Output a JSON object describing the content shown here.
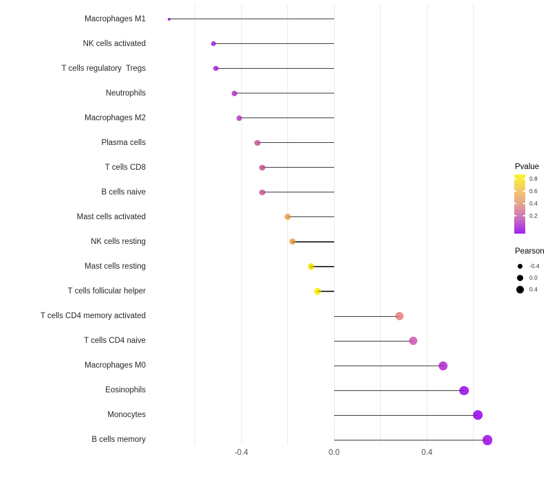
{
  "chart_data": {
    "type": "lollipop",
    "title": "",
    "xlabel": "",
    "ylabel": "",
    "xlim": [
      -0.8,
      0.73
    ],
    "grid": "vertical-only",
    "x_ticks": [
      {
        "value": -0.4,
        "label": "-0.4"
      },
      {
        "value": 0.0,
        "label": "0.0"
      },
      {
        "value": 0.4,
        "label": "0.4"
      }
    ],
    "gridline_values": [
      -0.6,
      -0.4,
      -0.2,
      0.0,
      0.2,
      0.4,
      0.6
    ],
    "points": [
      {
        "label": "Macrophages M1",
        "pearson": -0.71,
        "pvalue": 0.005,
        "color": "#8E2BE0",
        "size": 4
      },
      {
        "label": "NK cells activated",
        "pearson": -0.52,
        "pvalue": 0.05,
        "color": "#B23EDE",
        "size": 7
      },
      {
        "label": "T cells regulatory  Tregs",
        "pearson": -0.51,
        "pvalue": 0.05,
        "color": "#B440DC",
        "size": 7.5
      },
      {
        "label": "Neutrophils",
        "pearson": -0.43,
        "pvalue": 0.1,
        "color": "#BF4DD2",
        "size": 8
      },
      {
        "label": "Macrophages M2",
        "pearson": -0.41,
        "pvalue": 0.12,
        "color": "#C254CC",
        "size": 8
      },
      {
        "label": "Plasma cells",
        "pearson": -0.33,
        "pvalue": 0.35,
        "color": "#CE6CA6",
        "size": 8.5
      },
      {
        "label": "T cells CD8",
        "pearson": -0.31,
        "pvalue": 0.35,
        "color": "#CE6CA2",
        "size": 8.5
      },
      {
        "label": "B cells naive",
        "pearson": -0.31,
        "pvalue": 0.35,
        "color": "#CE6EA6",
        "size": 8.5
      },
      {
        "label": "Mast cells activated",
        "pearson": -0.2,
        "pvalue": 0.58,
        "color": "#EBA95F",
        "size": 9
      },
      {
        "label": "NK cells resting",
        "pearson": -0.18,
        "pvalue": 0.6,
        "color": "#ECAB5C",
        "size": 9
      },
      {
        "label": "Mast cells resting",
        "pearson": -0.1,
        "pvalue": 0.78,
        "color": "#F4E626",
        "size": 9.5
      },
      {
        "label": "T cells follicular helper",
        "pearson": -0.07,
        "pvalue": 0.84,
        "color": "#F6F01C",
        "size": 10
      },
      {
        "label": "T cells CD4 memory activated",
        "pearson": 0.28,
        "pvalue": 0.52,
        "color": "#E8938F",
        "size": 12
      },
      {
        "label": "T cells CD4 naive",
        "pearson": 0.34,
        "pvalue": 0.3,
        "color": "#D46EBB",
        "size": 12.5
      },
      {
        "label": "Macrophages M0",
        "pearson": 0.47,
        "pvalue": 0.14,
        "color": "#BC44D6",
        "size": 13
      },
      {
        "label": "Eosinophils",
        "pearson": 0.56,
        "pvalue": 0.04,
        "color": "#AA2CEA",
        "size": 13.5
      },
      {
        "label": "Monocytes",
        "pearson": 0.62,
        "pvalue": 0.02,
        "color": "#A525EE",
        "size": 14
      },
      {
        "label": "B cells memory",
        "pearson": 0.66,
        "pvalue": 0.03,
        "color": "#AB2BE8",
        "size": 14.5
      }
    ]
  },
  "legend": {
    "pvalue": {
      "title": "Pvalue",
      "ticks": [
        "0.8",
        "0.6",
        "0.4",
        "0.2"
      ],
      "gradient_stops": [
        "#FBF724",
        "#F3CC6B",
        "#E5A38F",
        "#C86FC0",
        "#A121F0"
      ]
    },
    "pearson": {
      "title": "Pearson",
      "dot_color": "#000000",
      "entries": [
        {
          "label": "-0.4",
          "size": 7
        },
        {
          "label": "0.0",
          "size": 9
        },
        {
          "label": "0.4",
          "size": 11
        }
      ]
    }
  },
  "style": {
    "background": "#FFFFFF",
    "stick_color": "#3C3C3C",
    "gridline_color": "#EAEAEA",
    "axis_text_color": "#4D4D4D",
    "label_color": "#262626"
  }
}
